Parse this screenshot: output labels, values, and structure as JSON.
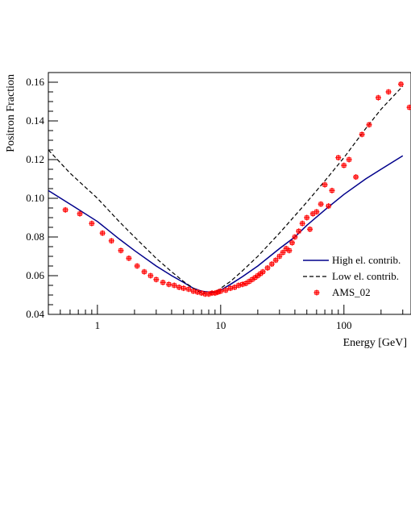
{
  "chart_data": {
    "type": "line",
    "xlabel": "Energy [GeV]",
    "ylabel": "Positron Fraction",
    "xscale": "log",
    "xlim": [
      0.4,
      350
    ],
    "ylim": [
      0.04,
      0.165
    ],
    "x_ticks": [
      1,
      10,
      100
    ],
    "x_tick_labels": [
      "1",
      "10",
      "100"
    ],
    "y_ticks": [
      0.04,
      0.06,
      0.08,
      0.1,
      0.12,
      0.14,
      0.16
    ],
    "y_tick_labels": [
      "0.04",
      "0.06",
      "0.08",
      "0.10",
      "0.12",
      "0.14",
      "0.16"
    ],
    "grid": false,
    "legend_position": "bottom-right",
    "series": [
      {
        "name": "High el. contrib.",
        "style": "solid",
        "color": "#00008b",
        "x": [
          0.4,
          0.6,
          1.0,
          1.5,
          2.0,
          3.0,
          4.0,
          5.0,
          6.0,
          7.0,
          8.0,
          9.0,
          10,
          12,
          15,
          20,
          30,
          40,
          50,
          70,
          100,
          150,
          200,
          300
        ],
        "y": [
          0.104,
          0.097,
          0.088,
          0.079,
          0.073,
          0.065,
          0.06,
          0.0565,
          0.0535,
          0.052,
          0.0515,
          0.0515,
          0.0525,
          0.0555,
          0.0595,
          0.065,
          0.074,
          0.08,
          0.086,
          0.094,
          0.102,
          0.11,
          0.115,
          0.122
        ]
      },
      {
        "name": "Low el. contrib.",
        "style": "dashed",
        "color": "#000000",
        "x": [
          0.4,
          0.6,
          1.0,
          1.5,
          2.0,
          3.0,
          4.0,
          5.0,
          6.0,
          7.0,
          8.0,
          9.0,
          10,
          12,
          15,
          20,
          30,
          40,
          50,
          70,
          100,
          150,
          200,
          300
        ],
        "y": [
          0.125,
          0.113,
          0.1,
          0.088,
          0.08,
          0.069,
          0.062,
          0.057,
          0.0535,
          0.051,
          0.0505,
          0.0515,
          0.0535,
          0.057,
          0.0625,
          0.07,
          0.082,
          0.091,
          0.098,
          0.109,
          0.121,
          0.136,
          0.146,
          0.158
        ]
      },
      {
        "name": "AMS_02",
        "style": "markers",
        "color": "#ff0000",
        "x": [
          0.55,
          0.72,
          0.9,
          1.1,
          1.3,
          1.55,
          1.8,
          2.1,
          2.4,
          2.7,
          3.0,
          3.4,
          3.8,
          4.2,
          4.6,
          5.0,
          5.5,
          6.0,
          6.5,
          7.0,
          7.5,
          8.0,
          8.5,
          9.0,
          9.5,
          10,
          11,
          12,
          13,
          14,
          15,
          16,
          17,
          18,
          19,
          20,
          21,
          22,
          24,
          26,
          28,
          30,
          32,
          34,
          36,
          38,
          40,
          43,
          46,
          50,
          53,
          56,
          60,
          65,
          70,
          75,
          80,
          90,
          100,
          110,
          125,
          140,
          160,
          190,
          230,
          290,
          340
        ],
        "y": [
          0.094,
          0.092,
          0.087,
          0.082,
          0.078,
          0.073,
          0.069,
          0.065,
          0.062,
          0.06,
          0.058,
          0.0565,
          0.0555,
          0.055,
          0.054,
          0.0535,
          0.053,
          0.052,
          0.0515,
          0.051,
          0.0505,
          0.0505,
          0.051,
          0.051,
          0.0515,
          0.052,
          0.0525,
          0.0535,
          0.054,
          0.055,
          0.0555,
          0.056,
          0.057,
          0.058,
          0.059,
          0.06,
          0.061,
          0.062,
          0.064,
          0.066,
          0.068,
          0.07,
          0.072,
          0.074,
          0.073,
          0.077,
          0.08,
          0.083,
          0.087,
          0.09,
          0.084,
          0.092,
          0.093,
          0.097,
          0.107,
          0.096,
          0.104,
          0.121,
          0.117,
          0.12,
          0.111,
          0.133,
          0.138,
          0.152,
          0.155,
          0.159,
          0.147
        ]
      }
    ]
  }
}
